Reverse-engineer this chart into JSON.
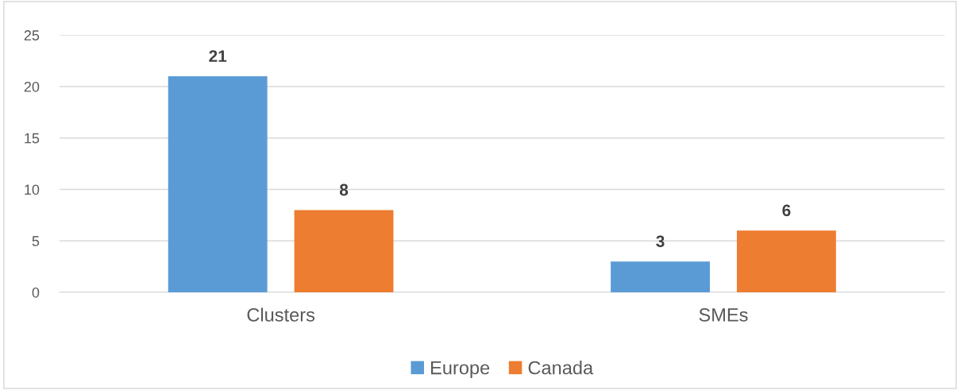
{
  "chart_data": {
    "type": "bar",
    "categories": [
      "Clusters",
      "SMEs"
    ],
    "series": [
      {
        "name": "Europe",
        "color": "#5b9bd5",
        "values": [
          21,
          3
        ]
      },
      {
        "name": "Canada",
        "color": "#ed7d31",
        "values": [
          8,
          6
        ]
      }
    ],
    "ylim": [
      0,
      25
    ],
    "yticks": [
      0,
      5,
      10,
      15,
      20,
      25
    ],
    "grid": "y",
    "legend": "bottom",
    "data_labels": true
  }
}
